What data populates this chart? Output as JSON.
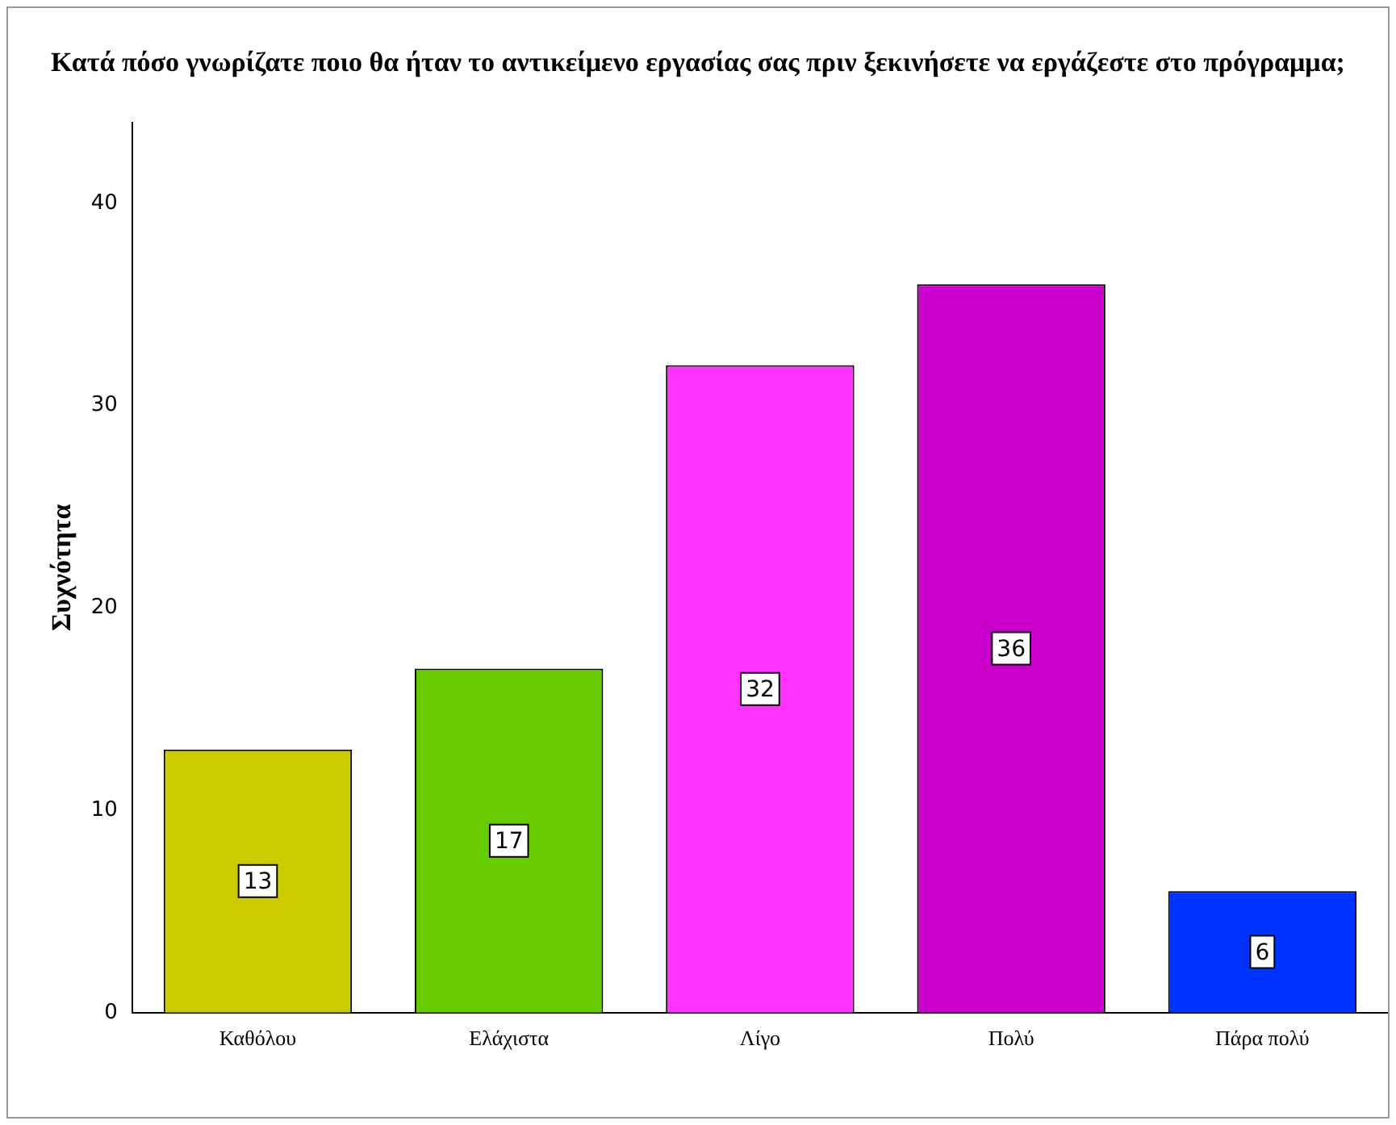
{
  "chart_data": {
    "type": "bar",
    "title": "Κατά πόσο γνωρίζατε ποιο θα ήταν το αντικείμενο εργασίας σας πριν ξεκινήσετε να εργάζεστε στο πρόγραμμα;",
    "ylabel": "Συχνότητα",
    "categories": [
      "Καθόλου",
      "Ελάχιστα",
      "Λίγο",
      "Πολύ",
      "Πάρα πολύ"
    ],
    "values": [
      13,
      17,
      32,
      36,
      6
    ],
    "colors": [
      "#cccc00",
      "#66cc00",
      "#ff33ff",
      "#cc00cc",
      "#0033ff"
    ],
    "ylim": [
      0,
      44
    ],
    "yticks": [
      0,
      10,
      20,
      30,
      40
    ],
    "grid": false,
    "legend": false,
    "data_labels": true
  }
}
